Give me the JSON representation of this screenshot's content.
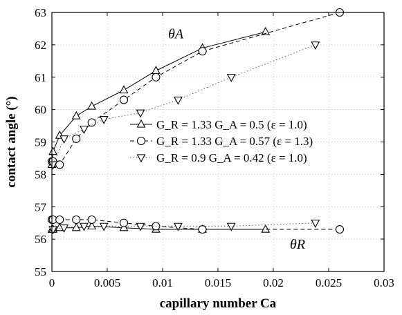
{
  "chart_data": {
    "type": "line",
    "xlabel": "capillary number Ca",
    "ylabel": "contact angle (°)",
    "xlim": [
      0,
      0.03
    ],
    "ylim": [
      55,
      63
    ],
    "xticks": [
      0,
      0.005,
      0.01,
      0.015,
      0.02,
      0.025,
      0.03
    ],
    "xtick_labels": [
      "0",
      "0.005",
      "0.01",
      "0.015",
      "0.02",
      "0.025",
      "0.03"
    ],
    "yticks": [
      55,
      56,
      57,
      58,
      59,
      60,
      61,
      62,
      63
    ],
    "ytick_labels": [
      "55",
      "56",
      "57",
      "58",
      "59",
      "60",
      "61",
      "62",
      "63"
    ],
    "grid": true,
    "legend_position": "center-right",
    "annotations": [
      {
        "text": "θA",
        "x": 0.0105,
        "y": 62.2
      },
      {
        "text": "θR",
        "x": 0.0215,
        "y": 55.7
      }
    ],
    "series": [
      {
        "name": "G_R = 1.33 G_A = 0.5 (ε = 1.0)",
        "legend_label": "G_R = 1.33 G_A = 0.5 (ε = 1.0)",
        "marker": "triangle-up",
        "line_style": "solid",
        "color": "#000000",
        "advancing": {
          "x": [
            0,
            0.0001,
            0.0007,
            0.0022,
            0.0036,
            0.0065,
            0.0094,
            0.0136,
            0.0193
          ],
          "y": [
            58.3,
            58.7,
            59.2,
            59.8,
            60.1,
            60.6,
            61.2,
            61.9,
            62.4
          ]
        },
        "receding": {
          "x": [
            0,
            0.0001,
            0.0007,
            0.0022,
            0.0036,
            0.0065,
            0.0094,
            0.0136,
            0.0193
          ],
          "y": [
            56.3,
            56.3,
            56.35,
            56.35,
            56.4,
            56.35,
            56.3,
            56.3,
            56.3
          ]
        }
      },
      {
        "name": "G_R = 1.33 G_A = 0.57 (ε = 1.3)",
        "legend_label": "G_R = 1.33 G_A = 0.57 (ε = 1.3)",
        "marker": "circle",
        "line_style": "dashed",
        "color": "#000000",
        "advancing": {
          "x": [
            0,
            0.0001,
            0.0007,
            0.0022,
            0.0036,
            0.0065,
            0.0094,
            0.0136,
            0.026
          ],
          "y": [
            58.4,
            58.4,
            58.3,
            59.1,
            59.6,
            60.3,
            61.0,
            61.8,
            63.0
          ]
        },
        "receding": {
          "x": [
            0,
            0.0001,
            0.0007,
            0.0022,
            0.0036,
            0.0065,
            0.0094,
            0.0136,
            0.026
          ],
          "y": [
            56.6,
            56.6,
            56.6,
            56.6,
            56.6,
            56.5,
            56.4,
            56.3,
            56.3
          ]
        }
      },
      {
        "name": "G_R = 0.9 G_A = 0.42 (ε = 1.0)",
        "legend_label": "G_R = 0.9 G_A = 0.42 (ε = 1.0)",
        "marker": "triangle-down",
        "line_style": "dotted",
        "color": "#000000",
        "advancing": {
          "x": [
            0.0001,
            0.0011,
            0.0029,
            0.0047,
            0.008,
            0.0114,
            0.0162,
            0.0238
          ],
          "y": [
            58.3,
            59.1,
            59.4,
            59.7,
            59.9,
            60.3,
            61.0,
            62.0
          ]
        },
        "receding": {
          "x": [
            0.0001,
            0.0011,
            0.0029,
            0.0047,
            0.008,
            0.0114,
            0.0162,
            0.0238
          ],
          "y": [
            56.3,
            56.35,
            56.4,
            56.4,
            56.4,
            56.4,
            56.4,
            56.5
          ]
        }
      }
    ]
  }
}
